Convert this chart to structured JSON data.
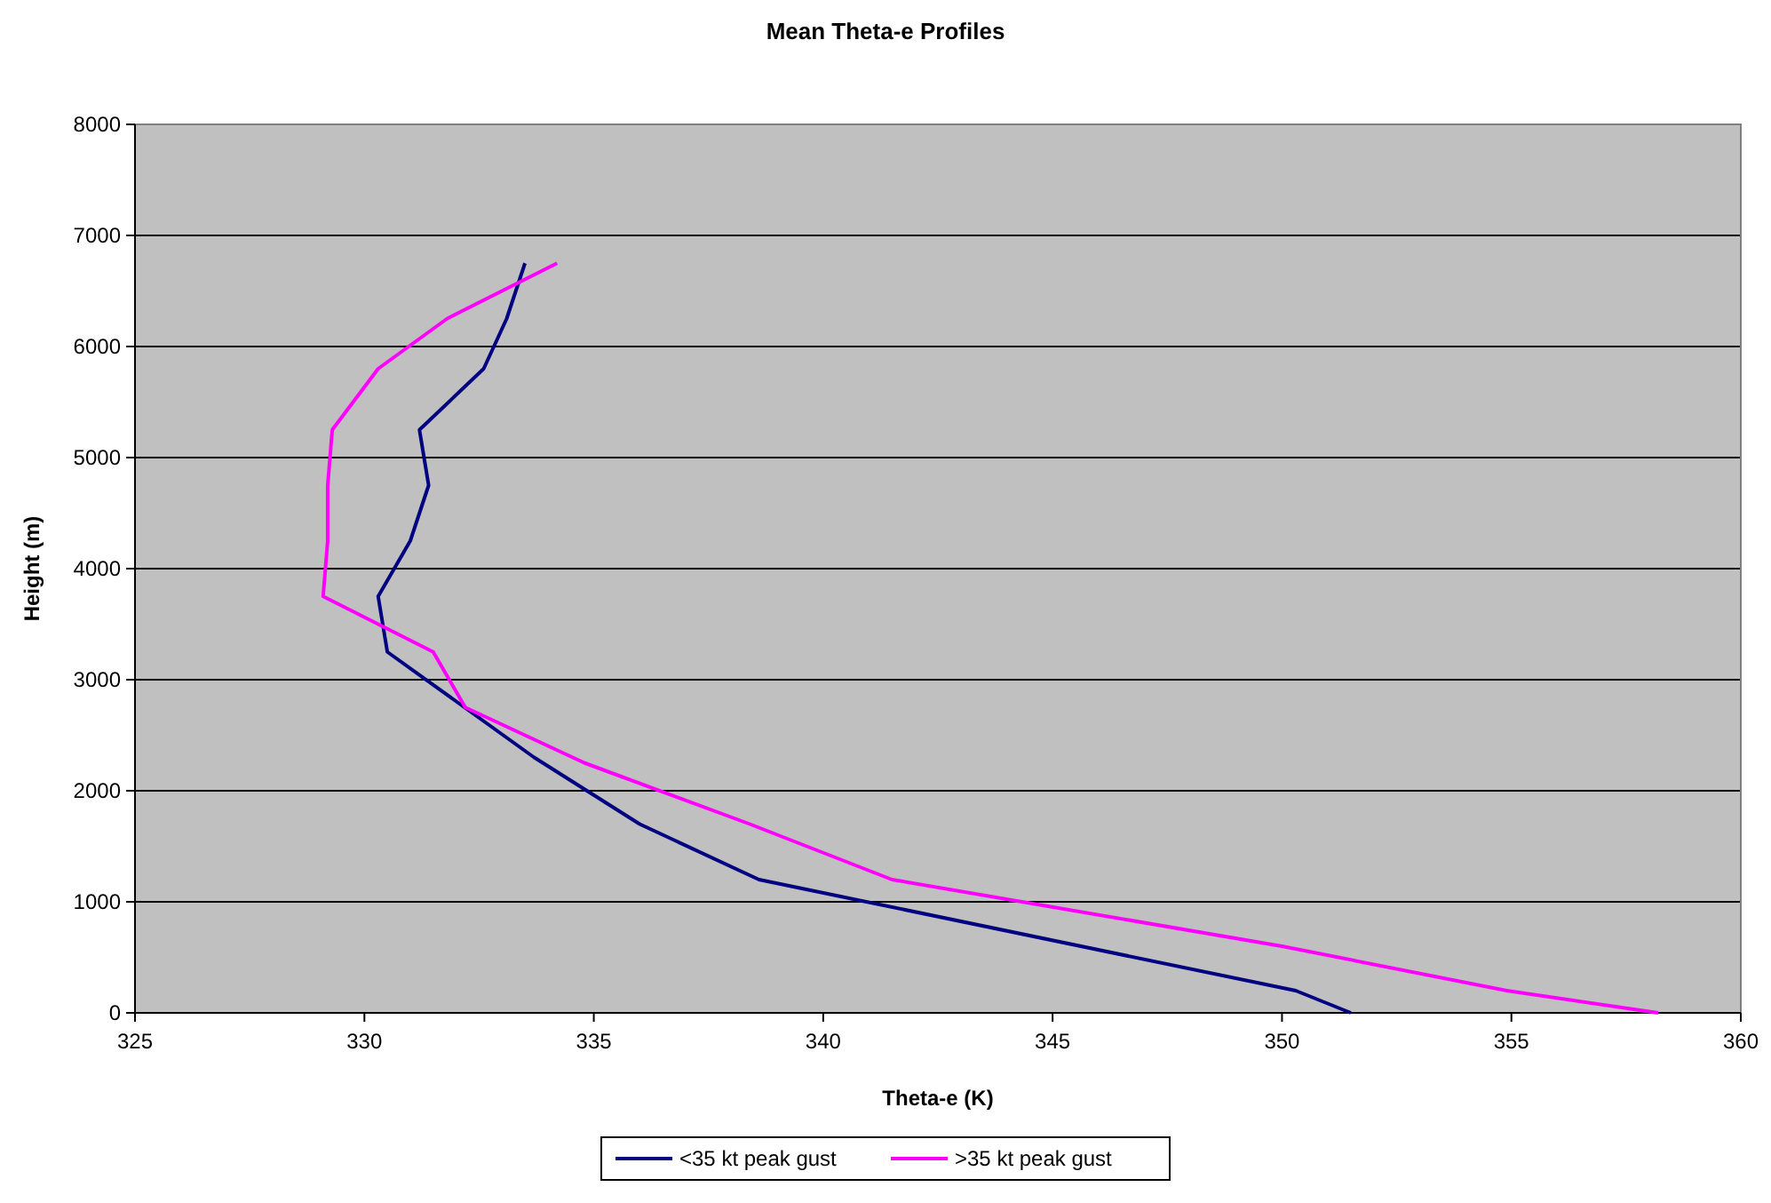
{
  "chart_data": {
    "type": "line",
    "title": "Mean Theta-e Profiles",
    "xlabel": "Theta-e (K)",
    "ylabel": "Height (m)",
    "xlim": [
      325,
      360
    ],
    "xticks": [
      325,
      330,
      335,
      340,
      345,
      350,
      355,
      360
    ],
    "ylim": [
      0,
      8000
    ],
    "yticks": [
      0,
      1000,
      2000,
      3000,
      4000,
      5000,
      6000,
      7000,
      8000
    ],
    "grid": "y",
    "legend": "bottom",
    "marker": "none",
    "line_style": "solid",
    "series": [
      {
        "name": "<35 kt peak gust",
        "color": "#000080",
        "x": [
          351.5,
          350.3,
          338.6,
          336.0,
          333.7,
          330.5,
          330.3,
          331.0,
          331.4,
          331.2,
          332.6,
          333.1,
          333.5
        ],
        "values": [
          0,
          200,
          1200,
          1700,
          2300,
          3250,
          3750,
          4250,
          4750,
          5250,
          5800,
          6250,
          6750
        ]
      },
      {
        "name": ">35 kt peak gust",
        "color": "#ff00ff",
        "x": [
          358.2,
          354.9,
          350.0,
          341.5,
          338.4,
          334.8,
          332.2,
          331.5,
          329.1,
          329.2,
          329.2,
          329.3,
          330.3,
          331.8,
          334.2
        ],
        "values": [
          0,
          200,
          600,
          1200,
          1700,
          2250,
          2750,
          3250,
          3750,
          4250,
          4750,
          5250,
          5800,
          6250,
          6750
        ]
      }
    ]
  }
}
